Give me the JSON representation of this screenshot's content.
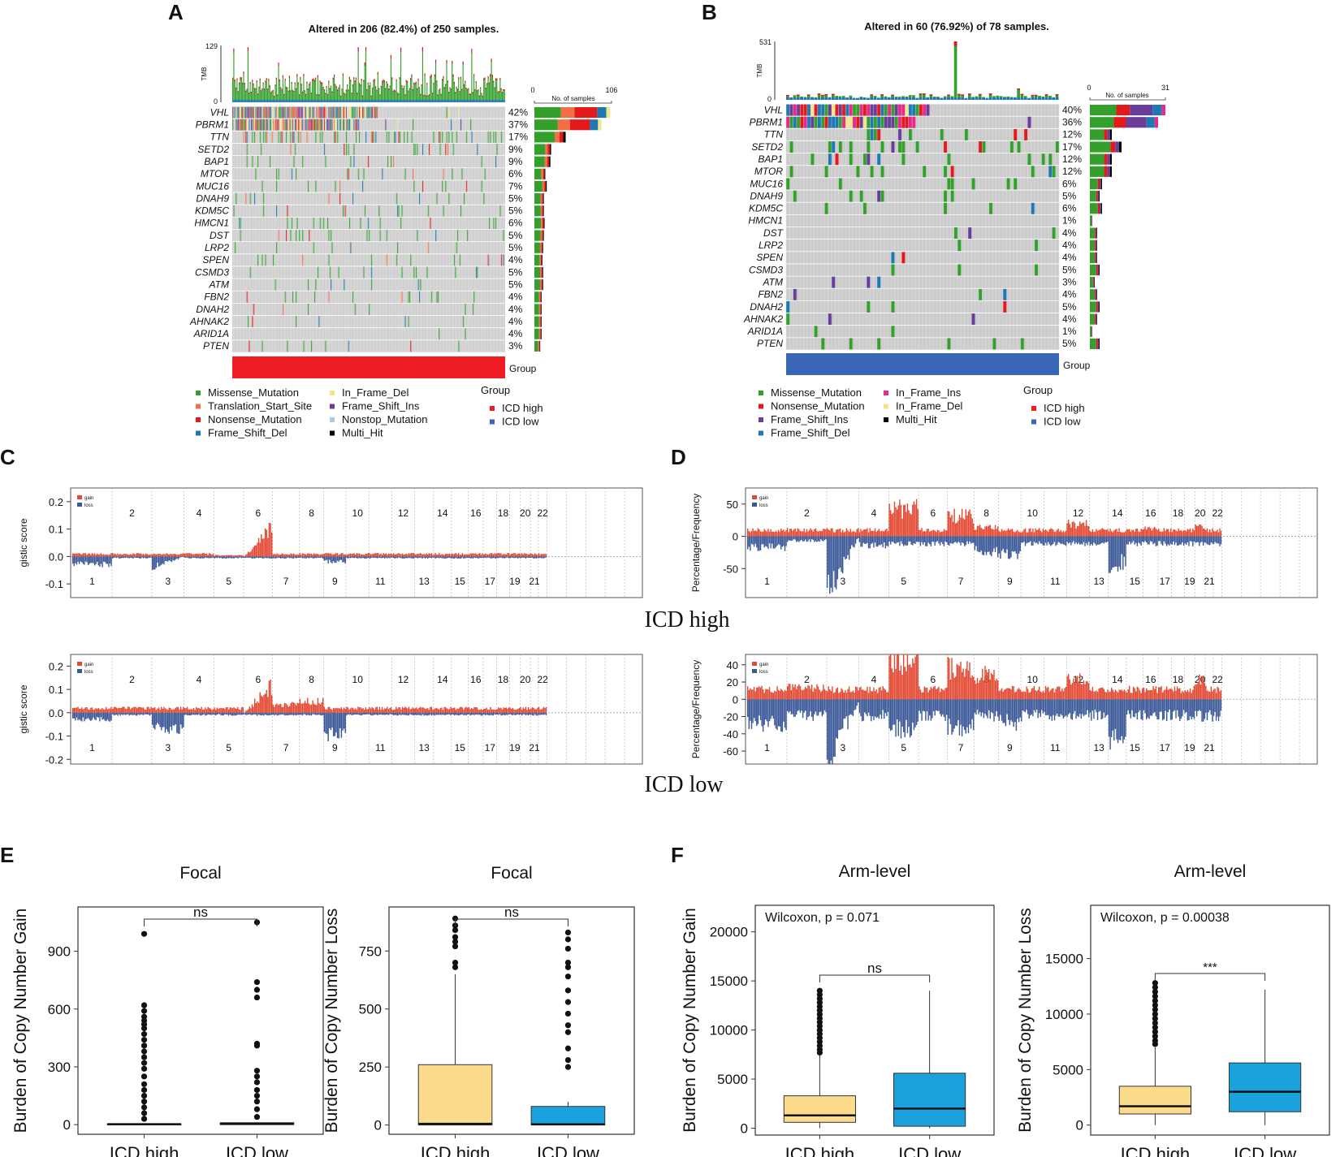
{
  "panels": {
    "A": {
      "letter": "A",
      "title": "Altered in 206 (82.4%) of 250 samples.",
      "tmb_label": "TMB",
      "tmb_max": "129",
      "tmb_min": "0",
      "bar_axis_min": "0",
      "bar_axis_max": "106",
      "bar_axis_label": "No. of samples",
      "group_label": "Group",
      "group_color": "#ee1d23",
      "genes": [
        {
          "name": "VHL",
          "pct": "42%",
          "count": 104
        },
        {
          "name": "PBRM1",
          "pct": "37%",
          "count": 92
        },
        {
          "name": "TTN",
          "pct": "17%",
          "count": 43
        },
        {
          "name": "SETD2",
          "pct": "9%",
          "count": 23
        },
        {
          "name": "BAP1",
          "pct": "9%",
          "count": 22
        },
        {
          "name": "MTOR",
          "pct": "6%",
          "count": 15
        },
        {
          "name": "MUC16",
          "pct": "7%",
          "count": 17
        },
        {
          "name": "DNAH9",
          "pct": "5%",
          "count": 13
        },
        {
          "name": "KDM5C",
          "pct": "5%",
          "count": 13
        },
        {
          "name": "HMCN1",
          "pct": "6%",
          "count": 14
        },
        {
          "name": "DST",
          "pct": "5%",
          "count": 13
        },
        {
          "name": "LRP2",
          "pct": "5%",
          "count": 12
        },
        {
          "name": "SPEN",
          "pct": "4%",
          "count": 11
        },
        {
          "name": "CSMD3",
          "pct": "5%",
          "count": 12
        },
        {
          "name": "ATM",
          "pct": "5%",
          "count": 12
        },
        {
          "name": "FBN2",
          "pct": "4%",
          "count": 10
        },
        {
          "name": "DNAH2",
          "pct": "4%",
          "count": 10
        },
        {
          "name": "AHNAK2",
          "pct": "4%",
          "count": 10
        },
        {
          "name": "ARID1A",
          "pct": "4%",
          "count": 10
        },
        {
          "name": "PTEN",
          "pct": "3%",
          "count": 8
        }
      ],
      "legend": [
        {
          "label": "Missense_Mutation",
          "color": "#33a02c"
        },
        {
          "label": "Translation_Start_Site",
          "color": "#f46d43"
        },
        {
          "label": "Nonsense_Mutation",
          "color": "#e31a1c"
        },
        {
          "label": "Frame_Shift_Del",
          "color": "#1f78b4"
        },
        {
          "label": "In_Frame_Del",
          "color": "#f0e68c"
        },
        {
          "label": "Frame_Shift_Ins",
          "color": "#6a3d9a"
        },
        {
          "label": "Nonstop_Mutation",
          "color": "#a6cee3"
        },
        {
          "label": "Multi_Hit",
          "color": "#000000"
        }
      ],
      "group_legend": [
        {
          "label": "ICD high",
          "color": "#ee1d23"
        },
        {
          "label": "ICD low",
          "color": "#3a66b8"
        }
      ]
    },
    "B": {
      "letter": "B",
      "title": "Altered in 60 (76.92%) of 78 samples.",
      "tmb_label": "TMB",
      "tmb_max": "531",
      "tmb_min": "0",
      "bar_axis_min": "0",
      "bar_axis_max": "31",
      "bar_axis_label": "No. of samples",
      "group_label": "Group",
      "group_color": "#3a66b8",
      "genes": [
        {
          "name": "VHL",
          "pct": "40%",
          "count": 31
        },
        {
          "name": "PBRM1",
          "pct": "36%",
          "count": 28
        },
        {
          "name": "TTN",
          "pct": "12%",
          "count": 9
        },
        {
          "name": "SETD2",
          "pct": "17%",
          "count": 13
        },
        {
          "name": "BAP1",
          "pct": "12%",
          "count": 9
        },
        {
          "name": "MTOR",
          "pct": "12%",
          "count": 9
        },
        {
          "name": "MUC16",
          "pct": "6%",
          "count": 5
        },
        {
          "name": "DNAH9",
          "pct": "5%",
          "count": 4
        },
        {
          "name": "KDM5C",
          "pct": "6%",
          "count": 5
        },
        {
          "name": "HMCN1",
          "pct": "1%",
          "count": 1
        },
        {
          "name": "DST",
          "pct": "4%",
          "count": 3
        },
        {
          "name": "LRP2",
          "pct": "4%",
          "count": 3
        },
        {
          "name": "SPEN",
          "pct": "4%",
          "count": 3
        },
        {
          "name": "CSMD3",
          "pct": "5%",
          "count": 4
        },
        {
          "name": "ATM",
          "pct": "3%",
          "count": 2
        },
        {
          "name": "FBN2",
          "pct": "4%",
          "count": 3
        },
        {
          "name": "DNAH2",
          "pct": "5%",
          "count": 4
        },
        {
          "name": "AHNAK2",
          "pct": "4%",
          "count": 3
        },
        {
          "name": "ARID1A",
          "pct": "1%",
          "count": 1
        },
        {
          "name": "PTEN",
          "pct": "5%",
          "count": 4
        }
      ],
      "legend": [
        {
          "label": "Missense_Mutation",
          "color": "#33a02c"
        },
        {
          "label": "Nonsense_Mutation",
          "color": "#e31a1c"
        },
        {
          "label": "Frame_Shift_Ins",
          "color": "#6a3d9a"
        },
        {
          "label": "Frame_Shift_Del",
          "color": "#1f78b4"
        },
        {
          "label": "In_Frame_Ins",
          "color": "#e7298a"
        },
        {
          "label": "In_Frame_Del",
          "color": "#f0e68c"
        },
        {
          "label": "Multi_Hit",
          "color": "#000000"
        }
      ],
      "group_legend": [
        {
          "label": "ICD high",
          "color": "#ee1d23"
        },
        {
          "label": "ICD low",
          "color": "#3a66b8"
        }
      ]
    },
    "C": {
      "letter": "C",
      "ylabel": "gistic score",
      "gain_label": "gain",
      "loss_label": "loss"
    },
    "D": {
      "letter": "D",
      "ylabel": "Percentage/Frequency",
      "gain_label": "gain",
      "loss_label": "loss"
    },
    "row_labels": {
      "high": "ICD high",
      "low": "ICD low"
    },
    "chromosomes_top": [
      "2",
      "4",
      "6",
      "8",
      "10",
      "12",
      "14",
      "16",
      "18",
      "20",
      "22"
    ],
    "chromosomes_bottom": [
      "1",
      "3",
      "5",
      "7",
      "9",
      "11",
      "13",
      "15",
      "17",
      "19",
      "21"
    ],
    "E": {
      "letter": "E"
    },
    "F": {
      "letter": "F"
    }
  },
  "chart_data": [
    {
      "type": "table",
      "title": "Altered in 206 (82.4%) of 250 samples.",
      "description_rows": "oncoplot ICD high",
      "samples": 250
    },
    {
      "type": "table",
      "title": "Altered in 60 (76.92%) of 78 samples.",
      "description_rows": "oncoplot ICD low",
      "samples": 78
    },
    {
      "type": "area",
      "title": "ICD high gistic",
      "ylabel": "gistic score",
      "yticks": [
        "0.2",
        "0.1",
        "0.0",
        "-0.1"
      ],
      "ylim": [
        -0.15,
        0.25
      ]
    },
    {
      "type": "area",
      "title": "ICD high frequency",
      "ylabel": "Percentage/Frequency",
      "yticks": [
        "50",
        "0",
        "-50"
      ],
      "ylim": [
        -95,
        75
      ]
    },
    {
      "type": "area",
      "title": "ICD low gistic",
      "ylabel": "gistic score",
      "yticks": [
        "0.2",
        "0.1",
        "0.0",
        "-0.1",
        "-0.2"
      ],
      "ylim": [
        -0.22,
        0.25
      ]
    },
    {
      "type": "area",
      "title": "ICD low frequency",
      "ylabel": "Percentage/Frequency",
      "yticks": [
        "40",
        "20",
        "0",
        "-20",
        "-40",
        "-60"
      ],
      "ylim": [
        -75,
        52
      ]
    },
    {
      "type": "box",
      "title": "Focal",
      "ylabel": "Burden of Copy Number Gain",
      "categories": [
        "ICD high",
        "ICD low"
      ],
      "yticks": [
        "0",
        "300",
        "600",
        "900"
      ],
      "ylim": [
        -50,
        1130
      ],
      "sig": "ns",
      "fills": [
        "#fddb8c",
        "#1ba1dc"
      ],
      "boxes": [
        {
          "q1": 0,
          "med": 2,
          "q3": 5,
          "lo": 0,
          "hi": 5,
          "out": [
            990,
            620,
            590,
            560,
            540,
            520,
            500,
            470,
            440,
            410,
            380,
            350,
            320,
            290,
            250,
            210,
            180,
            150,
            120,
            90,
            60,
            30
          ]
        },
        {
          "q1": 0,
          "med": 4,
          "q3": 10,
          "lo": 0,
          "hi": 10,
          "out": [
            1050,
            740,
            700,
            660,
            420,
            410,
            280,
            250,
            220,
            180,
            150,
            120,
            80,
            40
          ]
        }
      ]
    },
    {
      "type": "box",
      "title": "Focal",
      "ylabel": "Burden of Copy Number Loss",
      "categories": [
        "ICD high",
        "ICD low"
      ],
      "yticks": [
        "0",
        "250",
        "500",
        "750"
      ],
      "ylim": [
        -40,
        940
      ],
      "sig": "ns",
      "fills": [
        "#fddb8c",
        "#1ba1dc"
      ],
      "boxes": [
        {
          "q1": 0,
          "med": 5,
          "q3": 260,
          "lo": 0,
          "hi": 650,
          "out": [
            890,
            860,
            840,
            810,
            790,
            770,
            700,
            680
          ]
        },
        {
          "q1": 0,
          "med": 3,
          "q3": 80,
          "lo": 0,
          "hi": 100,
          "out": [
            830,
            800,
            760,
            700,
            680,
            640,
            580,
            530,
            480,
            430,
            400,
            330,
            280,
            250
          ]
        }
      ]
    },
    {
      "type": "box",
      "title": "Arm-level",
      "ylabel": "Burden of Copy Number Gain",
      "categories": [
        "ICD high",
        "ICD low"
      ],
      "yticks": [
        "0",
        "5000",
        "10000",
        "15000",
        "20000"
      ],
      "ylim": [
        -700,
        22700
      ],
      "sig": "ns",
      "annotation": "Wilcoxon, p = 0.071",
      "fills": [
        "#fddb8c",
        "#1ba1dc"
      ],
      "boxes": [
        {
          "q1": 600,
          "med": 1300,
          "q3": 3300,
          "lo": 0,
          "hi": 7500,
          "out": [
            14000,
            13600,
            13200,
            12800,
            12400,
            12000,
            11600,
            11200,
            10800,
            10400,
            10000,
            9600,
            9200,
            8800,
            8400,
            8000,
            7700
          ]
        },
        {
          "q1": 200,
          "med": 2000,
          "q3": 5600,
          "lo": 0,
          "hi": 14000,
          "out": []
        }
      ]
    },
    {
      "type": "box",
      "title": "Arm-level",
      "ylabel": "Burden of Copy Number Loss",
      "categories": [
        "ICD high",
        "ICD low"
      ],
      "yticks": [
        "0",
        "5000",
        "10000",
        "15000"
      ],
      "ylim": [
        -900,
        19800
      ],
      "sig": "***",
      "annotation": "Wilcoxon, p = 0.00038",
      "fills": [
        "#fddb8c",
        "#1ba1dc"
      ],
      "boxes": [
        {
          "q1": 1000,
          "med": 1700,
          "q3": 3500,
          "lo": 0,
          "hi": 7000,
          "out": [
            12800,
            12400,
            12000,
            11600,
            11200,
            10800,
            10400,
            10000,
            9600,
            9200,
            8800,
            8400,
            8000,
            7600,
            7300
          ]
        },
        {
          "q1": 1200,
          "med": 3000,
          "q3": 5600,
          "lo": 0,
          "hi": 12200,
          "out": []
        }
      ]
    }
  ]
}
